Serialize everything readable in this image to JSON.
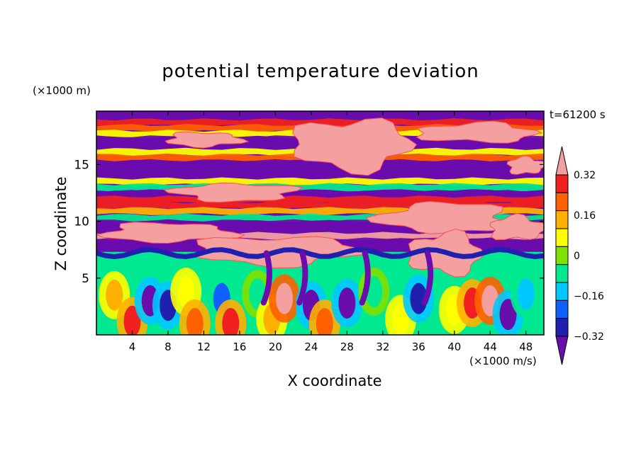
{
  "chart_data": {
    "type": "heatmap",
    "title": "potential temperature deviation",
    "xlabel": "X coordinate",
    "ylabel": "Z coordinate",
    "x_scale_note": "(×1000 m/s)",
    "y_scale_note": "(×1000 m)",
    "time_label": "t=61200 s",
    "xlim": [
      0,
      50
    ],
    "ylim": [
      0,
      19.7
    ],
    "x_ticks": [
      4,
      8,
      12,
      16,
      20,
      24,
      28,
      32,
      36,
      40,
      44,
      48
    ],
    "y_ticks": [
      5,
      10,
      15
    ],
    "colorbar": {
      "levels": [
        -0.4,
        -0.32,
        -0.24,
        -0.16,
        -0.08,
        0,
        0.08,
        0.16,
        0.24,
        0.32,
        0.4
      ],
      "labels": [
        "0.32",
        "0.16",
        "0",
        "−0.16",
        "−0.32"
      ],
      "label_values": [
        0.32,
        0.16,
        0,
        -0.16,
        -0.32
      ],
      "colors": [
        "#6a0dad",
        "#2020b0",
        "#1060ff",
        "#00c8ff",
        "#00e890",
        "#80e000",
        "#ffff00",
        "#ffb000",
        "#ff6000",
        "#f02020",
        "#f4a0a0"
      ],
      "extend": "both"
    },
    "upper_bands": [
      {
        "z": 18.7,
        "value": 0.32
      },
      {
        "z": 18.2,
        "value": 0.24
      },
      {
        "z": 17.7,
        "value": 0.08
      },
      {
        "z": 17.2,
        "value": -0.4
      },
      {
        "z": 16.6,
        "value": -0.4
      },
      {
        "z": 16.1,
        "value": 0.08
      },
      {
        "z": 15.6,
        "value": 0.24
      },
      {
        "z": 15.1,
        "value": -0.4
      },
      {
        "z": 14.5,
        "value": -0.4
      },
      {
        "z": 14.0,
        "value": -0.4
      },
      {
        "z": 13.5,
        "value": 0.08
      },
      {
        "z": 13.0,
        "value": -0.08
      },
      {
        "z": 12.4,
        "value": -0.4
      },
      {
        "z": 11.9,
        "value": 0.32
      },
      {
        "z": 11.4,
        "value": 0.32
      },
      {
        "z": 10.9,
        "value": 0.16
      },
      {
        "z": 10.3,
        "value": -0.08
      },
      {
        "z": 9.8,
        "value": -0.4
      },
      {
        "z": 9.3,
        "value": -0.4
      },
      {
        "z": 8.7,
        "value": 0.4
      },
      {
        "z": 8.2,
        "value": -0.4
      },
      {
        "z": 7.7,
        "value": -0.4
      }
    ],
    "pink_regions": [
      {
        "x": 8,
        "z": 16.6,
        "w": 8,
        "h": 1.2
      },
      {
        "x": 22,
        "z": 14.6,
        "w": 13,
        "h": 4.3
      },
      {
        "x": 36,
        "z": 17.0,
        "w": 13,
        "h": 1.6
      },
      {
        "x": 46,
        "z": 14.2,
        "w": 4,
        "h": 1.4
      },
      {
        "x": 9,
        "z": 11.8,
        "w": 13,
        "h": 1.5
      },
      {
        "x": 32,
        "z": 9.0,
        "w": 14,
        "h": 2.6
      },
      {
        "x": 1,
        "z": 8.2,
        "w": 14,
        "h": 1.6
      },
      {
        "x": 11,
        "z": 6.2,
        "w": 18,
        "h": 2.4
      },
      {
        "x": 35,
        "z": 5.4,
        "w": 8,
        "h": 3.5
      },
      {
        "x": 44,
        "z": 8.4,
        "w": 6,
        "h": 2.0
      }
    ],
    "lower_blobs": [
      {
        "x": 2,
        "z": 3.5,
        "value": 0.16
      },
      {
        "x": 4,
        "z": 1.2,
        "value": 0.32
      },
      {
        "x": 6,
        "z": 3.0,
        "value": -0.4
      },
      {
        "x": 8,
        "z": 2.6,
        "value": -0.32
      },
      {
        "x": 10,
        "z": 3.8,
        "value": 0.08
      },
      {
        "x": 11,
        "z": 1.0,
        "value": 0.24
      },
      {
        "x": 14,
        "z": 3.2,
        "value": -0.24
      },
      {
        "x": 15,
        "z": 1.0,
        "value": 0.32
      },
      {
        "x": 18,
        "z": 3.6,
        "value": -0.08
      },
      {
        "x": 19.6,
        "z": 1.4,
        "value": 0.16
      },
      {
        "x": 21,
        "z": 3.2,
        "value": 0.4
      },
      {
        "x": 24,
        "z": 2.6,
        "value": -0.4
      },
      {
        "x": 25.5,
        "z": 1.0,
        "value": 0.24
      },
      {
        "x": 28,
        "z": 2.8,
        "value": -0.4
      },
      {
        "x": 31,
        "z": 3.8,
        "value": -0.08
      },
      {
        "x": 34,
        "z": 1.4,
        "value": 0.08
      },
      {
        "x": 36,
        "z": 3.2,
        "value": -0.32
      },
      {
        "x": 40,
        "z": 2.2,
        "value": 0.08
      },
      {
        "x": 42,
        "z": 2.8,
        "value": 0.32
      },
      {
        "x": 44,
        "z": 3.0,
        "value": 0.4
      },
      {
        "x": 46,
        "z": 1.8,
        "value": -0.4
      },
      {
        "x": 48,
        "z": 3.6,
        "value": -0.16
      }
    ],
    "grid": false,
    "legend": "right colorbar"
  }
}
